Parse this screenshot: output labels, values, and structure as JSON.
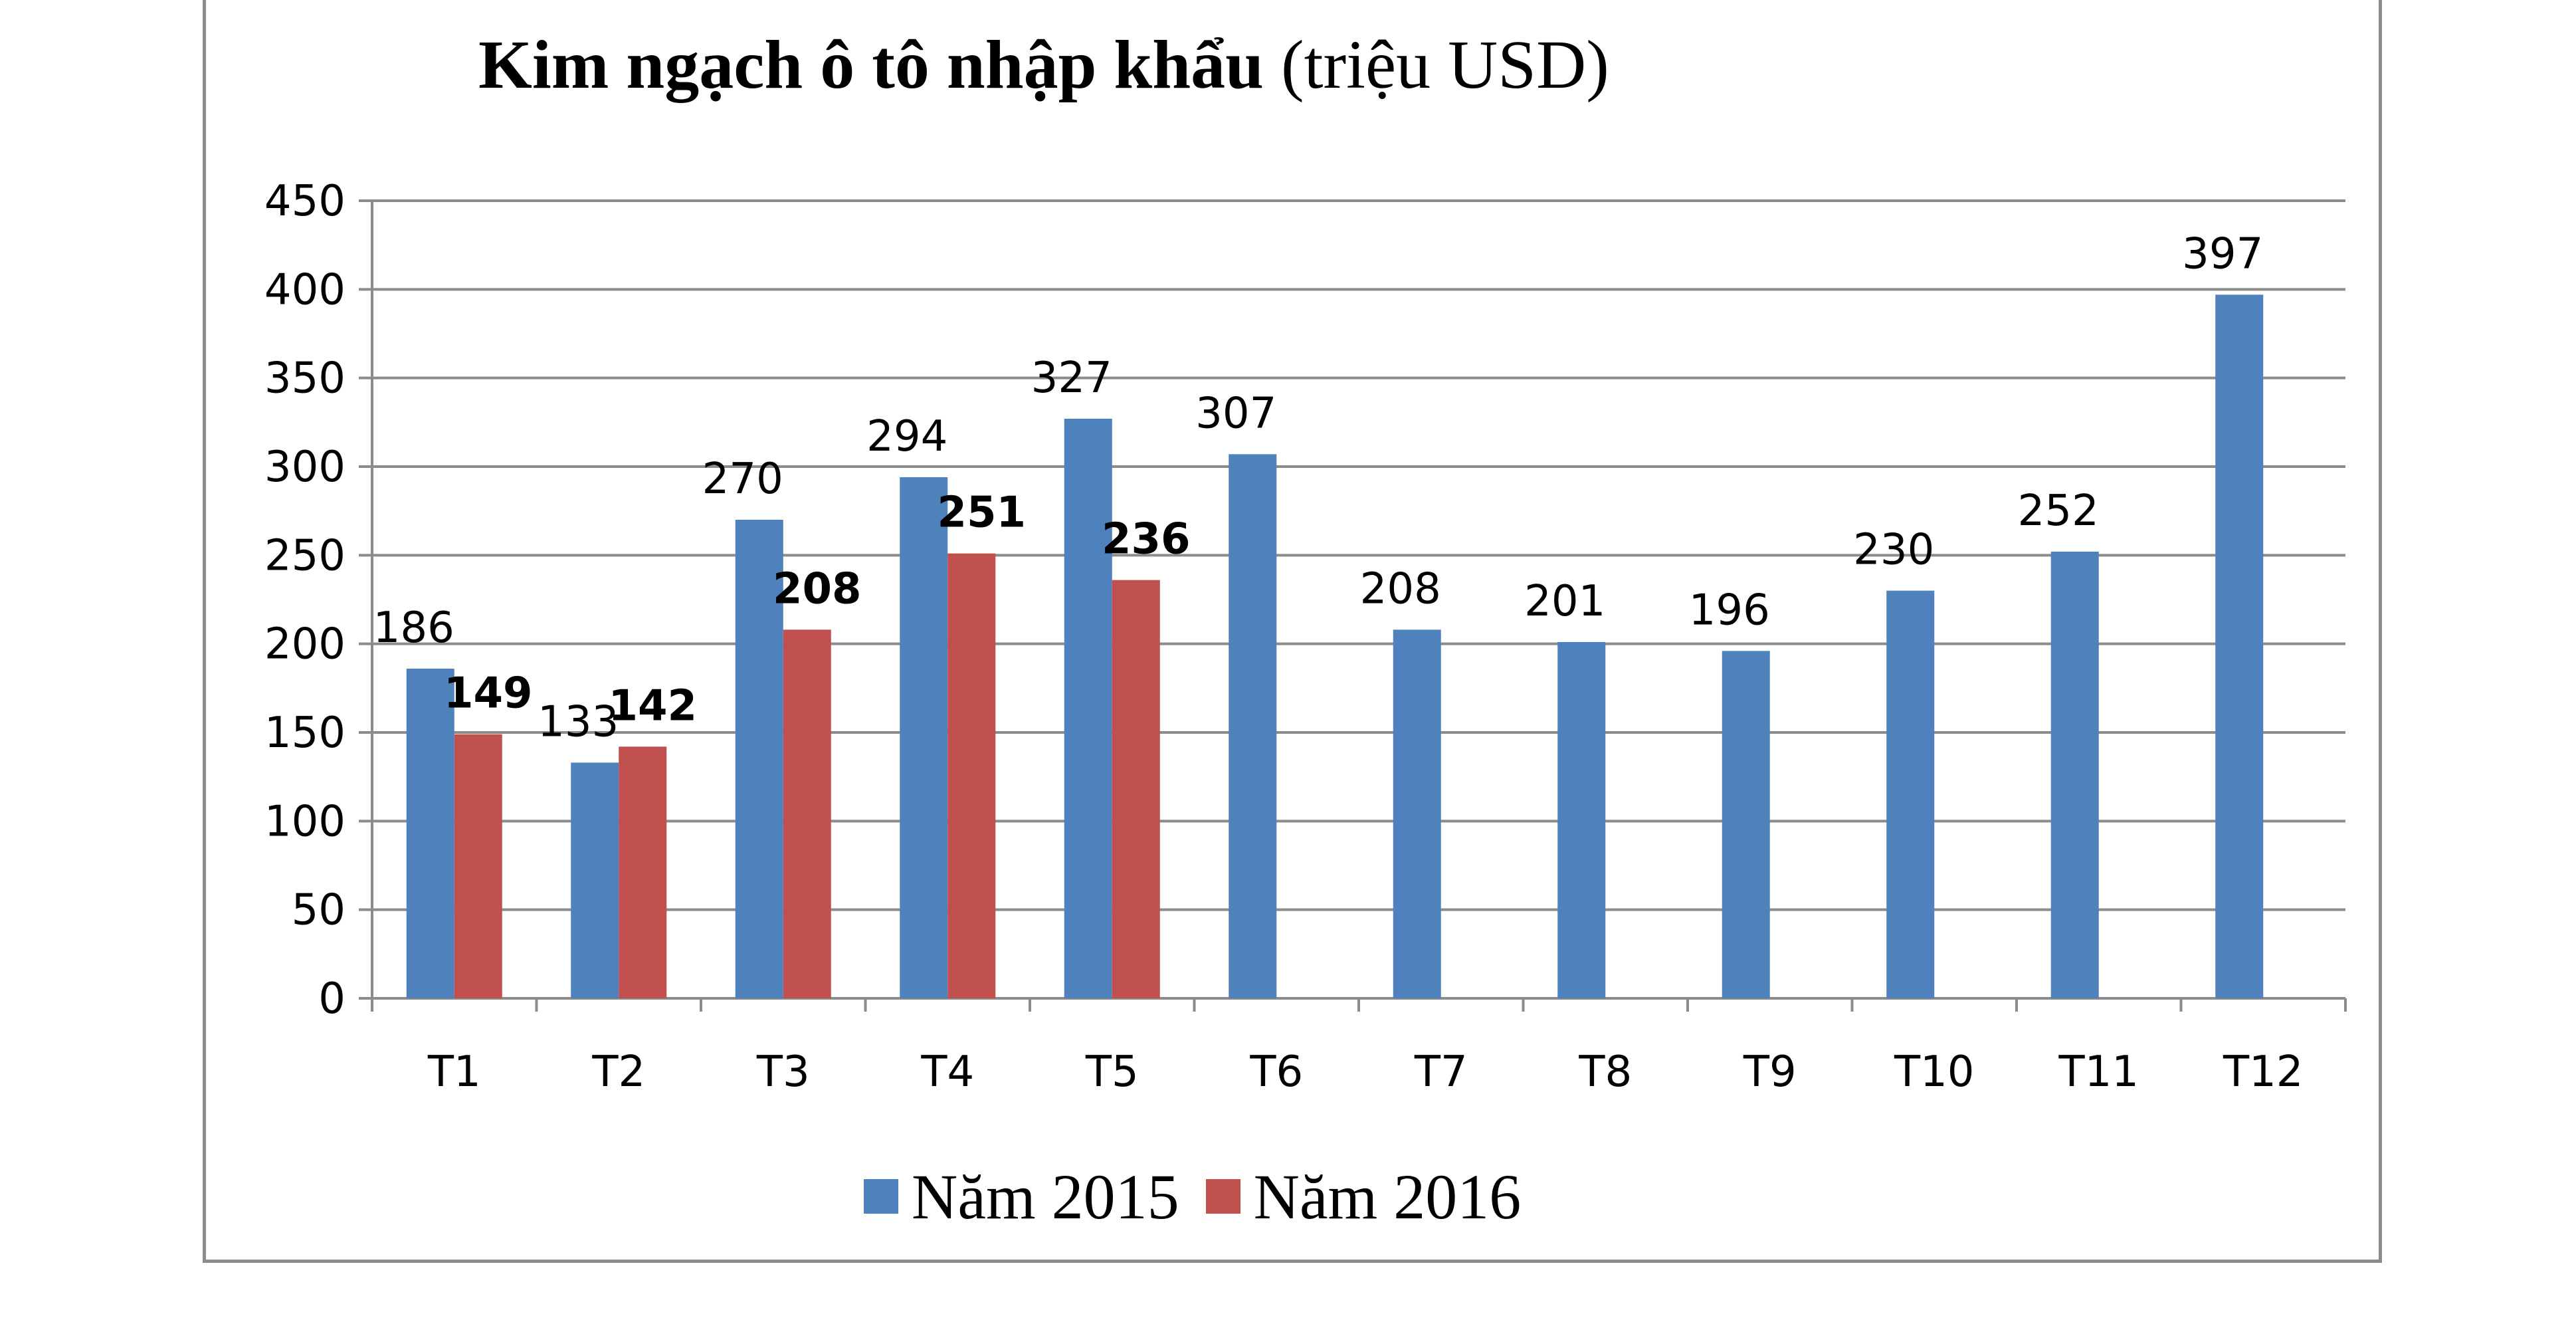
{
  "chart_data": {
    "type": "bar",
    "title_bold": "Kim ngạch ô tô nhập khẩu",
    "title_normal": "(triệu USD)",
    "categories": [
      "T1",
      "T2",
      "T3",
      "T4",
      "T5",
      "T6",
      "T7",
      "T8",
      "T9",
      "T10",
      "T11",
      "T12"
    ],
    "series": [
      {
        "name": "Năm 2015",
        "color": "#4f81bd",
        "values": [
          186,
          133,
          270,
          294,
          327,
          307,
          208,
          201,
          196,
          230,
          252,
          397
        ],
        "label_bold": false
      },
      {
        "name": "Năm 2016",
        "color": "#c0504d",
        "values": [
          149,
          142,
          208,
          251,
          236,
          null,
          null,
          null,
          null,
          null,
          null,
          null
        ],
        "label_bold": true
      }
    ],
    "ylim": [
      0,
      450
    ],
    "yticks": [
      0,
      50,
      100,
      150,
      200,
      250,
      300,
      350,
      400,
      450
    ],
    "grid": true,
    "legend_position": "bottom"
  }
}
